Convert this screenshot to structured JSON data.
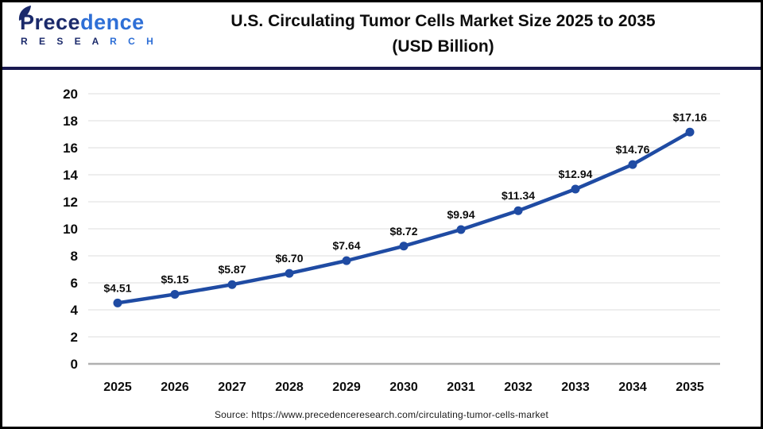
{
  "branding": {
    "logo_part1": "Prece",
    "logo_part2": "dence",
    "logo_sub_part1": "R E S E A ",
    "logo_sub_part2": "R C H",
    "logo_color_dark": "#1b2a6b",
    "logo_color_light": "#2e6fd6"
  },
  "header": {
    "title_line1": "U.S. Circulating Tumor Cells Market Size 2025 to 2035",
    "title_line2": "(USD Billion)"
  },
  "footer": {
    "source_text": "Source: https://www.precedenceresearch.com/circulating-tumor-cells-market"
  },
  "chart_data": {
    "type": "line",
    "title": "U.S. Circulating Tumor Cells Market Size 2025 to 2035 (USD Billion)",
    "categories": [
      "2025",
      "2026",
      "2027",
      "2028",
      "2029",
      "2030",
      "2031",
      "2032",
      "2033",
      "2034",
      "2035"
    ],
    "values": [
      4.51,
      5.15,
      5.87,
      6.7,
      7.64,
      8.72,
      9.94,
      11.34,
      12.94,
      14.76,
      17.16
    ],
    "point_labels": [
      "$4.51",
      "$5.15",
      "$5.87",
      "$6.70",
      "$7.64",
      "$8.72",
      "$9.94",
      "$11.34",
      "$12.94",
      "$14.76",
      "$17.16"
    ],
    "xlabel": "",
    "ylabel": "",
    "ylim": [
      0,
      20
    ],
    "y_ticks": [
      0,
      2,
      4,
      6,
      8,
      10,
      12,
      14,
      16,
      18,
      20
    ],
    "grid": true,
    "legend": "none",
    "line_color": "#1f4ba3",
    "marker_color": "#1f4ba3",
    "gridline_color": "#e8e8e8",
    "axis_line_color": "#b0b0b0",
    "tick_label_color": "#0d0d0d",
    "data_label_color": "#0d0d0d"
  }
}
